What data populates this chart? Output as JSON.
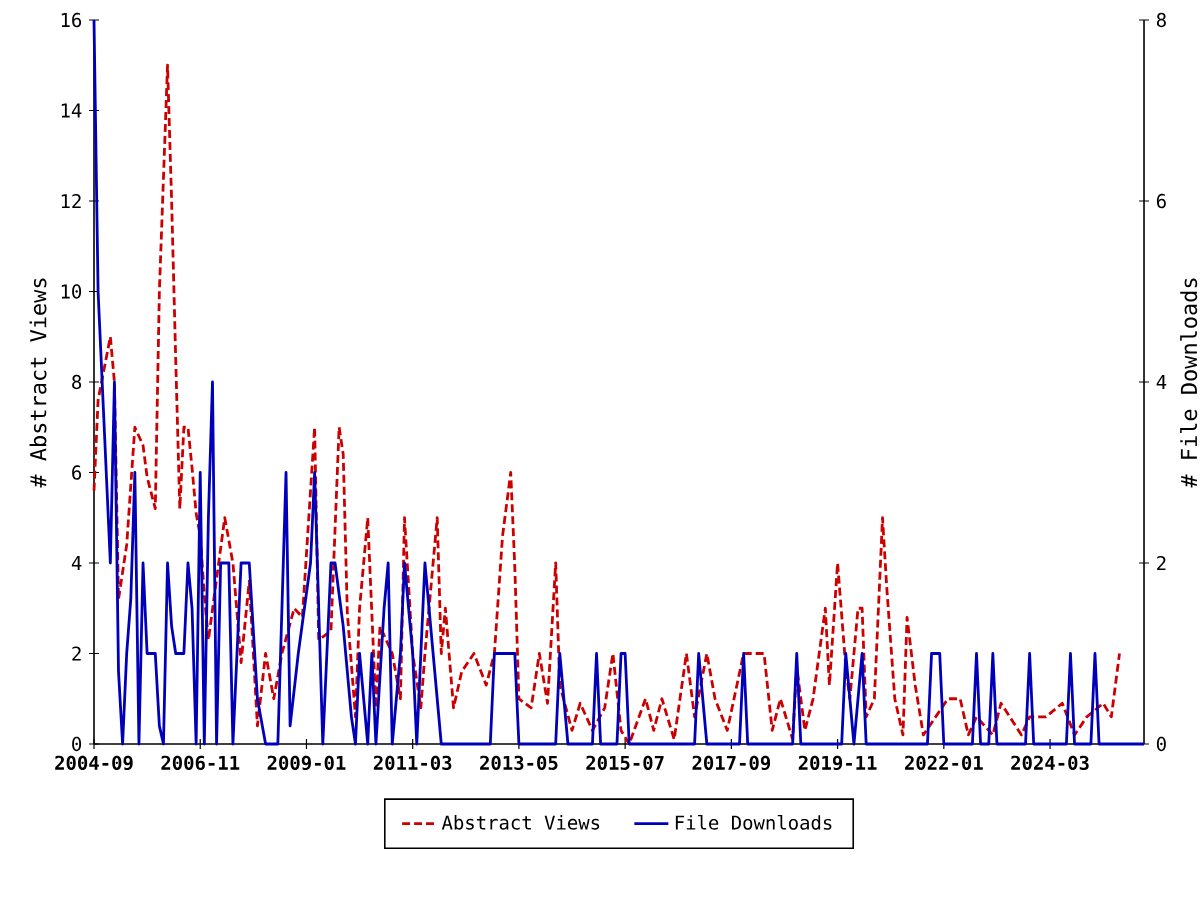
{
  "chart_data": {
    "type": "line",
    "ylabel": "# Abstract Views",
    "y2label": "# File Downloads",
    "xlim": [
      "2004-09",
      "2026-02"
    ],
    "xticks": [
      "2004-09",
      "2006-11",
      "2009-01",
      "2011-03",
      "2013-05",
      "2015-07",
      "2017-09",
      "2019-11",
      "2022-01",
      "2024-03"
    ],
    "ylim": [
      0,
      16
    ],
    "yticks": [
      0,
      2,
      4,
      6,
      8,
      10,
      12,
      14,
      16
    ],
    "y2lim": [
      0,
      8
    ],
    "y2ticks": [
      0,
      2,
      4,
      6,
      8
    ],
    "legend": "bottom",
    "series": [
      {
        "name": "Abstract Views",
        "color": "#cc0000",
        "line_style": "dashed",
        "x": [
          "2004-09",
          "2004-10",
          "2005-01",
          "2005-02",
          "2005-03",
          "2005-05",
          "2005-07",
          "2005-09",
          "2005-10",
          "2005-12",
          "2006-01",
          "2006-03",
          "2006-04",
          "2006-05",
          "2006-06",
          "2006-07",
          "2006-08",
          "2006-09",
          "2006-10",
          "2006-11",
          "2006-12",
          "2007-01",
          "2007-05",
          "2007-07",
          "2007-09",
          "2007-11",
          "2008-01",
          "2008-03",
          "2008-05",
          "2008-07",
          "2008-10",
          "2008-12",
          "2009-03",
          "2009-04",
          "2009-07",
          "2009-09",
          "2009-10",
          "2009-11",
          "2010-01",
          "2010-02",
          "2010-04",
          "2010-06",
          "2010-07",
          "2010-10",
          "2010-12",
          "2011-01",
          "2011-03",
          "2011-05",
          "2011-06",
          "2011-09",
          "2011-10",
          "2011-11",
          "2012-01",
          "2012-03",
          "2012-06",
          "2012-09",
          "2012-11",
          "2013-01",
          "2013-03",
          "2013-04",
          "2013-05",
          "2013-08",
          "2013-10",
          "2013-12",
          "2014-02",
          "2014-03",
          "2014-06",
          "2014-08",
          "2014-11",
          "2015-02",
          "2015-04",
          "2015-06",
          "2015-08",
          "2015-12",
          "2016-02",
          "2016-04",
          "2016-07",
          "2016-10",
          "2016-12",
          "2017-03",
          "2017-05",
          "2017-08",
          "2017-12",
          "2018-03",
          "2018-05",
          "2018-07",
          "2018-09",
          "2018-12",
          "2019-01",
          "2019-03",
          "2019-05",
          "2019-08",
          "2019-09",
          "2019-11",
          "2020-01",
          "2020-02",
          "2020-04",
          "2020-05",
          "2020-06",
          "2020-08",
          "2020-10",
          "2020-11",
          "2021-01",
          "2021-03",
          "2021-04",
          "2021-06",
          "2021-08",
          "2021-11",
          "2022-02",
          "2022-05",
          "2022-07",
          "2022-09",
          "2023-01",
          "2023-03",
          "2023-08",
          "2023-10",
          "2024-02",
          "2024-06",
          "2024-09",
          "2024-12",
          "2025-04",
          "2025-06",
          "2025-08"
        ],
        "values": [
          5.6,
          7.6,
          9.0,
          8.0,
          3.2,
          4.4,
          7.0,
          6.6,
          5.9,
          5.2,
          10,
          15,
          12,
          8.5,
          5.2,
          7.0,
          7.0,
          6.1,
          5.1,
          4.6,
          3.3,
          2.3,
          5.0,
          4.0,
          1.8,
          3.6,
          0.4,
          2.0,
          1.0,
          2.0,
          3.0,
          2.8,
          7.0,
          2.3,
          2.5,
          7.0,
          6.4,
          2.9,
          0.6,
          3.0,
          5.0,
          0.8,
          2.6,
          2.0,
          1.0,
          5.0,
          2.0,
          0.8,
          2.0,
          5.0,
          2.0,
          3.0,
          0.8,
          1.6,
          2.0,
          1.3,
          2.0,
          4.6,
          6.0,
          3.9,
          1.0,
          0.8,
          2.0,
          0.9,
          4.0,
          1.3,
          0.3,
          0.9,
          0.3,
          0.8,
          2.0,
          0.3,
          0,
          1.0,
          0.3,
          1.0,
          0.1,
          2.0,
          0.6,
          2.0,
          1.0,
          0.3,
          2.0,
          2.0,
          2.0,
          0.3,
          1.0,
          0.1,
          1.7,
          0.3,
          1.0,
          3.0,
          1.3,
          4.0,
          1.7,
          1.0,
          3.0,
          3.0,
          0.6,
          1.0,
          5.0,
          3.5,
          1.0,
          0.2,
          2.8,
          1.3,
          0.2,
          0.6,
          1.0,
          1.0,
          0.2,
          0.6,
          0.2,
          0.9,
          0.2,
          0.6,
          0.6,
          0.9,
          0.2,
          0.6,
          0.9,
          0.6,
          2.0
        ]
      },
      {
        "name": "File Downloads",
        "color": "#0000bb",
        "axis": "y2",
        "x": [
          "2004-09",
          "2004-10",
          "2004-12",
          "2005-01",
          "2005-02",
          "2005-03",
          "2005-04",
          "2005-05",
          "2005-06",
          "2005-07",
          "2005-08",
          "2005-09",
          "2005-10",
          "2005-12",
          "2006-01",
          "2006-02",
          "2006-03",
          "2006-04",
          "2006-05",
          "2006-07",
          "2006-08",
          "2006-09",
          "2006-10",
          "2006-11",
          "2006-12",
          "2007-01",
          "2007-02",
          "2007-03",
          "2007-04",
          "2007-06",
          "2007-07",
          "2007-09",
          "2007-11",
          "2008-01",
          "2008-03",
          "2008-06",
          "2008-08",
          "2008-09",
          "2008-11",
          "2009-02",
          "2009-03",
          "2009-05",
          "2009-07",
          "2009-08",
          "2009-10",
          "2009-12",
          "2010-01",
          "2010-02",
          "2010-04",
          "2010-05",
          "2010-06",
          "2010-08",
          "2010-09",
          "2010-10",
          "2010-12",
          "2011-01",
          "2011-03",
          "2011-04",
          "2011-06",
          "2011-08",
          "2011-10",
          "2012-10",
          "2012-11",
          "2013-04",
          "2013-05",
          "2014-02",
          "2014-03",
          "2014-05",
          "2014-11",
          "2014-12",
          "2015-01",
          "2015-05",
          "2015-06",
          "2015-07",
          "2015-08",
          "2016-12",
          "2017-01",
          "2017-03",
          "2017-11",
          "2017-12",
          "2018-01",
          "2018-12",
          "2019-01",
          "2019-02",
          "2019-12",
          "2020-01",
          "2020-03",
          "2020-05",
          "2020-06",
          "2021-09",
          "2021-10",
          "2021-12",
          "2022-01",
          "2022-08",
          "2022-09",
          "2022-10",
          "2022-12",
          "2023-01",
          "2023-02",
          "2023-09",
          "2023-10",
          "2023-11",
          "2024-07",
          "2024-08",
          "2024-09",
          "2025-01",
          "2025-02",
          "2025-03",
          "2026-02"
        ],
        "values": [
          8,
          5,
          3,
          2,
          4,
          0.8,
          0,
          1.0,
          1.6,
          3.0,
          0,
          2.0,
          1.0,
          1.0,
          0.2,
          0,
          2.0,
          1.3,
          1.0,
          1.0,
          2.0,
          1.5,
          0,
          3.0,
          0,
          2.5,
          4.0,
          0,
          2.0,
          2.0,
          0,
          2.0,
          2.0,
          0.5,
          0,
          0,
          3.0,
          0.2,
          1.0,
          2.0,
          3.0,
          0,
          2.0,
          2.0,
          1.3,
          0.3,
          0,
          1.0,
          0,
          1.0,
          0,
          1.5,
          2.0,
          0,
          1.0,
          2.0,
          1.0,
          0,
          2.0,
          1.0,
          0,
          0,
          1.0,
          1.0,
          0,
          0,
          1.0,
          0,
          0,
          1.0,
          0,
          0,
          1.0,
          1.0,
          0,
          0,
          1.0,
          0,
          0,
          1.0,
          0,
          0,
          1.0,
          0,
          0,
          1.0,
          0,
          1.0,
          0,
          0,
          1.0,
          1.0,
          0,
          0,
          1.0,
          0,
          0,
          1.0,
          0,
          0,
          1.0,
          0,
          0,
          1.0,
          0,
          0,
          1.0,
          0,
          0
        ]
      }
    ]
  }
}
